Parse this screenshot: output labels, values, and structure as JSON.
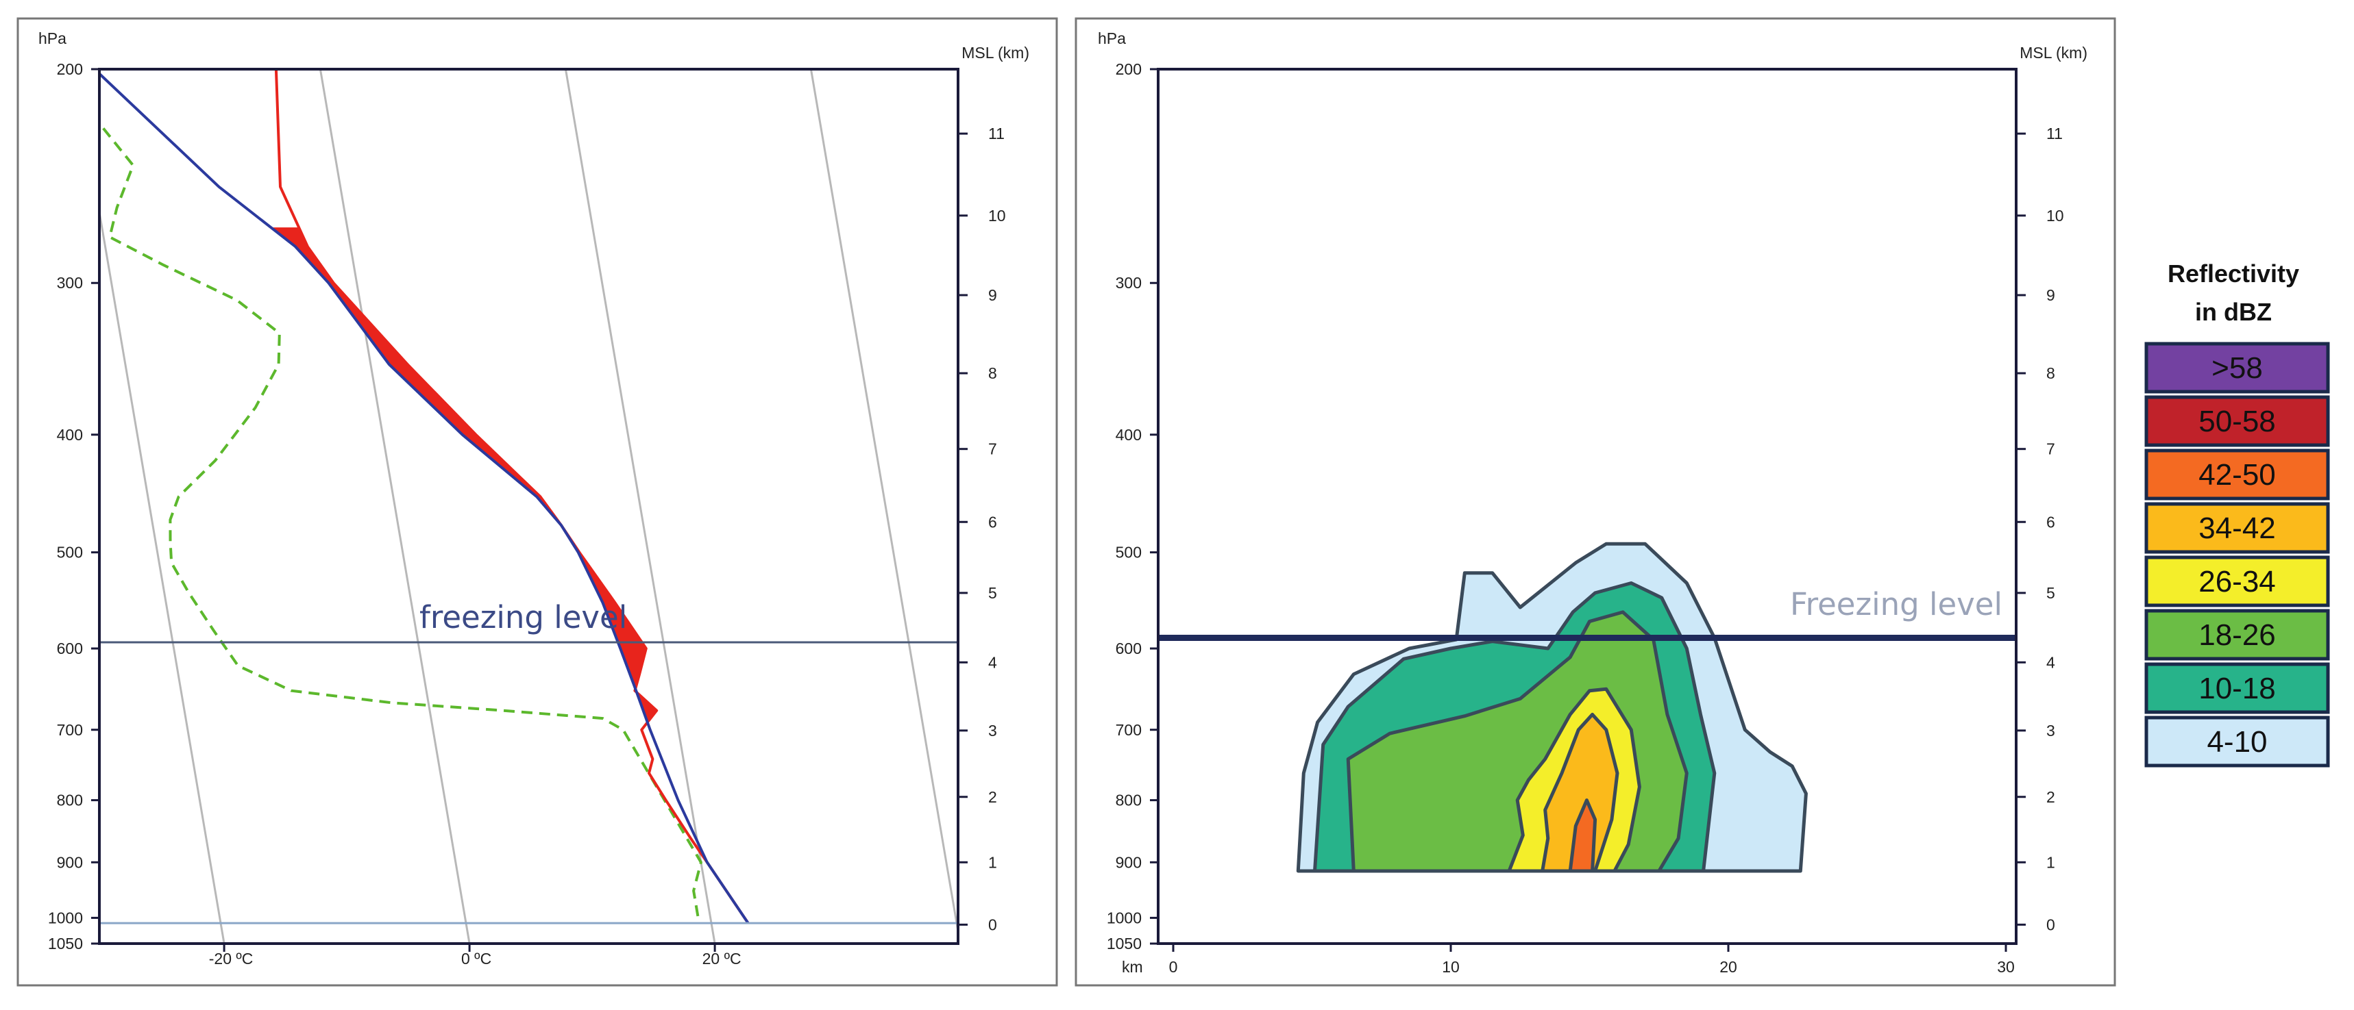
{
  "chart_data": [
    {
      "type": "line",
      "p_ticks": [
        200,
        300,
        400,
        500,
        600,
        700,
        800,
        900,
        1000,
        1050
      ],
      "p_unit": "hPa",
      "h_ticks": [
        0,
        1,
        2,
        3,
        4,
        5,
        6,
        7,
        8,
        9,
        10,
        11
      ],
      "h_unit": "MSL (km)",
      "t_ticks": [
        "-20 ºC",
        "0 ºC",
        "20 ºC"
      ],
      "t_tick_values": [
        -20,
        0,
        20
      ],
      "freezing_level_label": "freezing level",
      "freezing_level_p": 593,
      "surface_p": 1010,
      "series": [
        {
          "color": "#e8241c",
          "points": [
            [
              200,
              -3.6
            ],
            [
              250,
              -4.9
            ],
            [
              280,
              -3.5
            ],
            [
              300,
              -1.9
            ],
            [
              350,
              3.0
            ],
            [
              400,
              7.6
            ],
            [
              450,
              12.0
            ],
            [
              475,
              13.3
            ],
            [
              500,
              14.4
            ],
            [
              550,
              16.6
            ],
            [
              600,
              18.5
            ],
            [
              630,
              17.6
            ],
            [
              650,
              17.0
            ],
            [
              675,
              18.5
            ],
            [
              700,
              17.0
            ],
            [
              740,
              17.5
            ],
            [
              760,
              17.0
            ],
            [
              800,
              18.0
            ],
            [
              860,
              19.5
            ],
            [
              900,
              20.5
            ],
            [
              1010,
              23.0
            ]
          ]
        },
        {
          "color": "#2b3a9e",
          "points": [
            [
              200,
              -18.4
            ],
            [
              250,
              -9.9
            ],
            [
              280,
              -4.5
            ],
            [
              300,
              -2.3
            ],
            [
              350,
              1.5
            ],
            [
              400,
              6.5
            ],
            [
              450,
              11.7
            ],
            [
              475,
              13.3
            ],
            [
              500,
              14.3
            ],
            [
              550,
              15.6
            ],
            [
              600,
              16.4
            ],
            [
              650,
              17.1
            ],
            [
              700,
              17.7
            ],
            [
              800,
              19.0
            ],
            [
              900,
              20.5
            ],
            [
              1010,
              23.0
            ]
          ]
        },
        {
          "color": "#5cb82c",
          "dashed": true,
          "points": [
            [
              200,
              -20.9
            ],
            [
              215,
              -19.6
            ],
            [
              240,
              -16.6
            ],
            [
              260,
              -18.5
            ],
            [
              275,
              -19.5
            ],
            [
              290,
              -15.5
            ],
            [
              310,
              -10.0
            ],
            [
              330,
              -7.0
            ],
            [
              350,
              -7.5
            ],
            [
              380,
              -10.0
            ],
            [
              420,
              -14.0
            ],
            [
              450,
              -17.5
            ],
            [
              470,
              -18.5
            ],
            [
              490,
              -18.8
            ],
            [
              510,
              -19.0
            ],
            [
              540,
              -18.0
            ],
            [
              580,
              -16.5
            ],
            [
              620,
              -15.0
            ],
            [
              650,
              -11.0
            ],
            [
              665,
              -3.0
            ],
            [
              675,
              6.0
            ],
            [
              685,
              14.0
            ],
            [
              700,
              15.5
            ],
            [
              900,
              20.0
            ],
            [
              950,
              19.0
            ],
            [
              1010,
              19.0
            ]
          ]
        }
      ]
    },
    {
      "type": "contour",
      "p_ticks": [
        200,
        300,
        400,
        500,
        600,
        700,
        800,
        900,
        1000,
        1050
      ],
      "p_unit": "hPa",
      "h_ticks": [
        0,
        1,
        2,
        3,
        4,
        5,
        6,
        7,
        8,
        9,
        10,
        11
      ],
      "h_unit": "MSL (km)",
      "x_ticks": [
        0,
        10,
        20,
        30
      ],
      "x_unit": "km",
      "freezing_level_label": "Freezing level",
      "freezing_level_p": 588,
      "contours": [
        {
          "dbz": "4-10",
          "points": [
            [
              4.5,
              915
            ],
            [
              4.7,
              760
            ],
            [
              5.2,
              690
            ],
            [
              6.5,
              630
            ],
            [
              8.5,
              600
            ],
            [
              10.2,
              590
            ],
            [
              10.5,
              520
            ],
            [
              11.5,
              520
            ],
            [
              12.5,
              555
            ],
            [
              14.5,
              510
            ],
            [
              15.6,
              492
            ],
            [
              17.0,
              492
            ],
            [
              18.5,
              530
            ],
            [
              19.5,
              588
            ],
            [
              20.6,
              700
            ],
            [
              21.5,
              730
            ],
            [
              22.3,
              750
            ],
            [
              22.8,
              790
            ],
            [
              22.6,
              915
            ]
          ]
        },
        {
          "dbz": "10-18",
          "points": [
            [
              5.1,
              915
            ],
            [
              5.4,
              720
            ],
            [
              6.3,
              670
            ],
            [
              8.3,
              612
            ],
            [
              10.0,
              600
            ],
            [
              11.5,
              592
            ],
            [
              13.5,
              600
            ],
            [
              14.4,
              560
            ],
            [
              15.2,
              540
            ],
            [
              16.5,
              530
            ],
            [
              17.6,
              545
            ],
            [
              18.5,
              600
            ],
            [
              19.0,
              680
            ],
            [
              19.5,
              760
            ],
            [
              19.1,
              915
            ]
          ]
        },
        {
          "dbz": "18-26",
          "points": [
            [
              6.5,
              915
            ],
            [
              6.3,
              740
            ],
            [
              7.8,
              705
            ],
            [
              10.5,
              682
            ],
            [
              12.5,
              660
            ],
            [
              14.3,
              610
            ],
            [
              15.0,
              570
            ],
            [
              16.2,
              560
            ],
            [
              17.3,
              590
            ],
            [
              17.8,
              680
            ],
            [
              18.5,
              760
            ],
            [
              18.2,
              860
            ],
            [
              17.5,
              915
            ]
          ]
        },
        {
          "dbz": "26-34",
          "points": [
            [
              12.1,
              915
            ],
            [
              12.6,
              855
            ],
            [
              12.4,
              800
            ],
            [
              12.8,
              770
            ],
            [
              13.4,
              740
            ],
            [
              14.3,
              680
            ],
            [
              15.0,
              650
            ],
            [
              15.6,
              648
            ],
            [
              16.5,
              700
            ],
            [
              16.8,
              780
            ],
            [
              16.4,
              870
            ],
            [
              15.9,
              915
            ]
          ]
        },
        {
          "dbz": "34-42",
          "points": [
            [
              13.3,
              915
            ],
            [
              13.5,
              860
            ],
            [
              13.4,
              815
            ],
            [
              14.0,
              760
            ],
            [
              14.6,
              700
            ],
            [
              15.1,
              680
            ],
            [
              15.6,
              700
            ],
            [
              16.0,
              760
            ],
            [
              15.8,
              830
            ],
            [
              15.2,
              915
            ]
          ]
        },
        {
          "dbz": "42-50",
          "points": [
            [
              14.3,
              915
            ],
            [
              14.5,
              840
            ],
            [
              14.9,
              800
            ],
            [
              15.2,
              830
            ],
            [
              15.1,
              915
            ]
          ]
        }
      ],
      "legend": {
        "title_line1": "Reflectivity",
        "title_line2": "in dBZ",
        "items": [
          {
            "label": ">58",
            "color": "#7341a1"
          },
          {
            "label": "50-58",
            "color": "#c0222a"
          },
          {
            "label": "42-50",
            "color": "#f46a22"
          },
          {
            "label": "34-42",
            "color": "#fbba1b"
          },
          {
            "label": "26-34",
            "color": "#f4ee2a"
          },
          {
            "label": "18-26",
            "color": "#6bbd45"
          },
          {
            "label": "10-18",
            "color": "#27b38a"
          },
          {
            "label": "4-10",
            "color": "#cde8f8"
          }
        ]
      }
    }
  ]
}
